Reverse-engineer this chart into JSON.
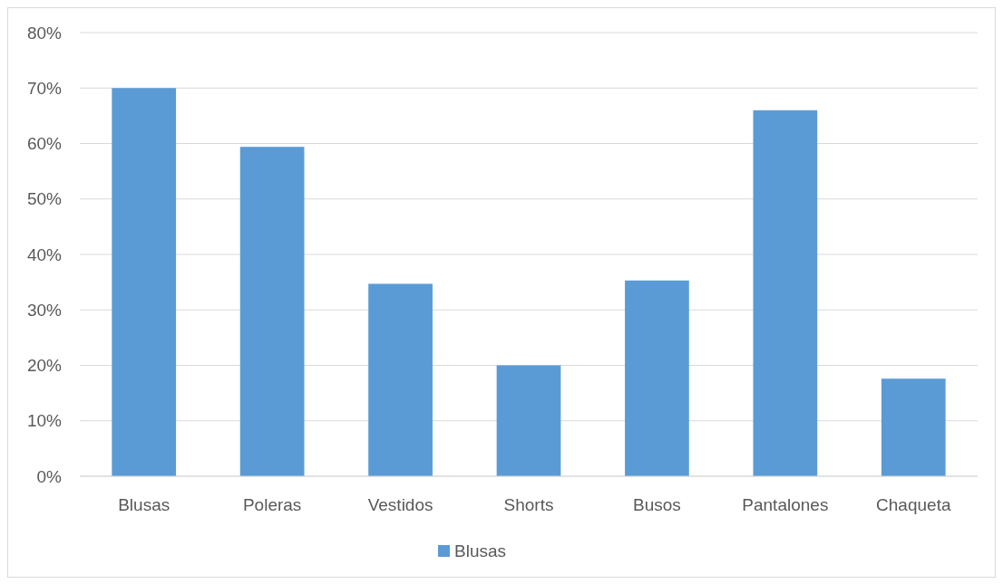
{
  "chart_data": {
    "type": "bar",
    "categories": [
      "Blusas",
      "Poleras",
      "Vestidos",
      "Shorts",
      "Busos",
      "Pantalones",
      "Chaqueta"
    ],
    "series": [
      {
        "name": "Blusas",
        "color": "#5b9bd5",
        "values": [
          70,
          59.4,
          34.7,
          20,
          35.3,
          66,
          17.6
        ]
      }
    ],
    "ylim": [
      0,
      80
    ],
    "yticks": [
      {
        "value": 0,
        "label": "0%"
      },
      {
        "value": 10,
        "label": "10%"
      },
      {
        "value": 20,
        "label": "20%"
      },
      {
        "value": 30,
        "label": "30%"
      },
      {
        "value": 40,
        "label": "40%"
      },
      {
        "value": 50,
        "label": "50%"
      },
      {
        "value": 60,
        "label": "60%"
      },
      {
        "value": 70,
        "label": "70%"
      },
      {
        "value": 80,
        "label": "80%"
      }
    ],
    "grid": "y",
    "legend": "bottom"
  }
}
